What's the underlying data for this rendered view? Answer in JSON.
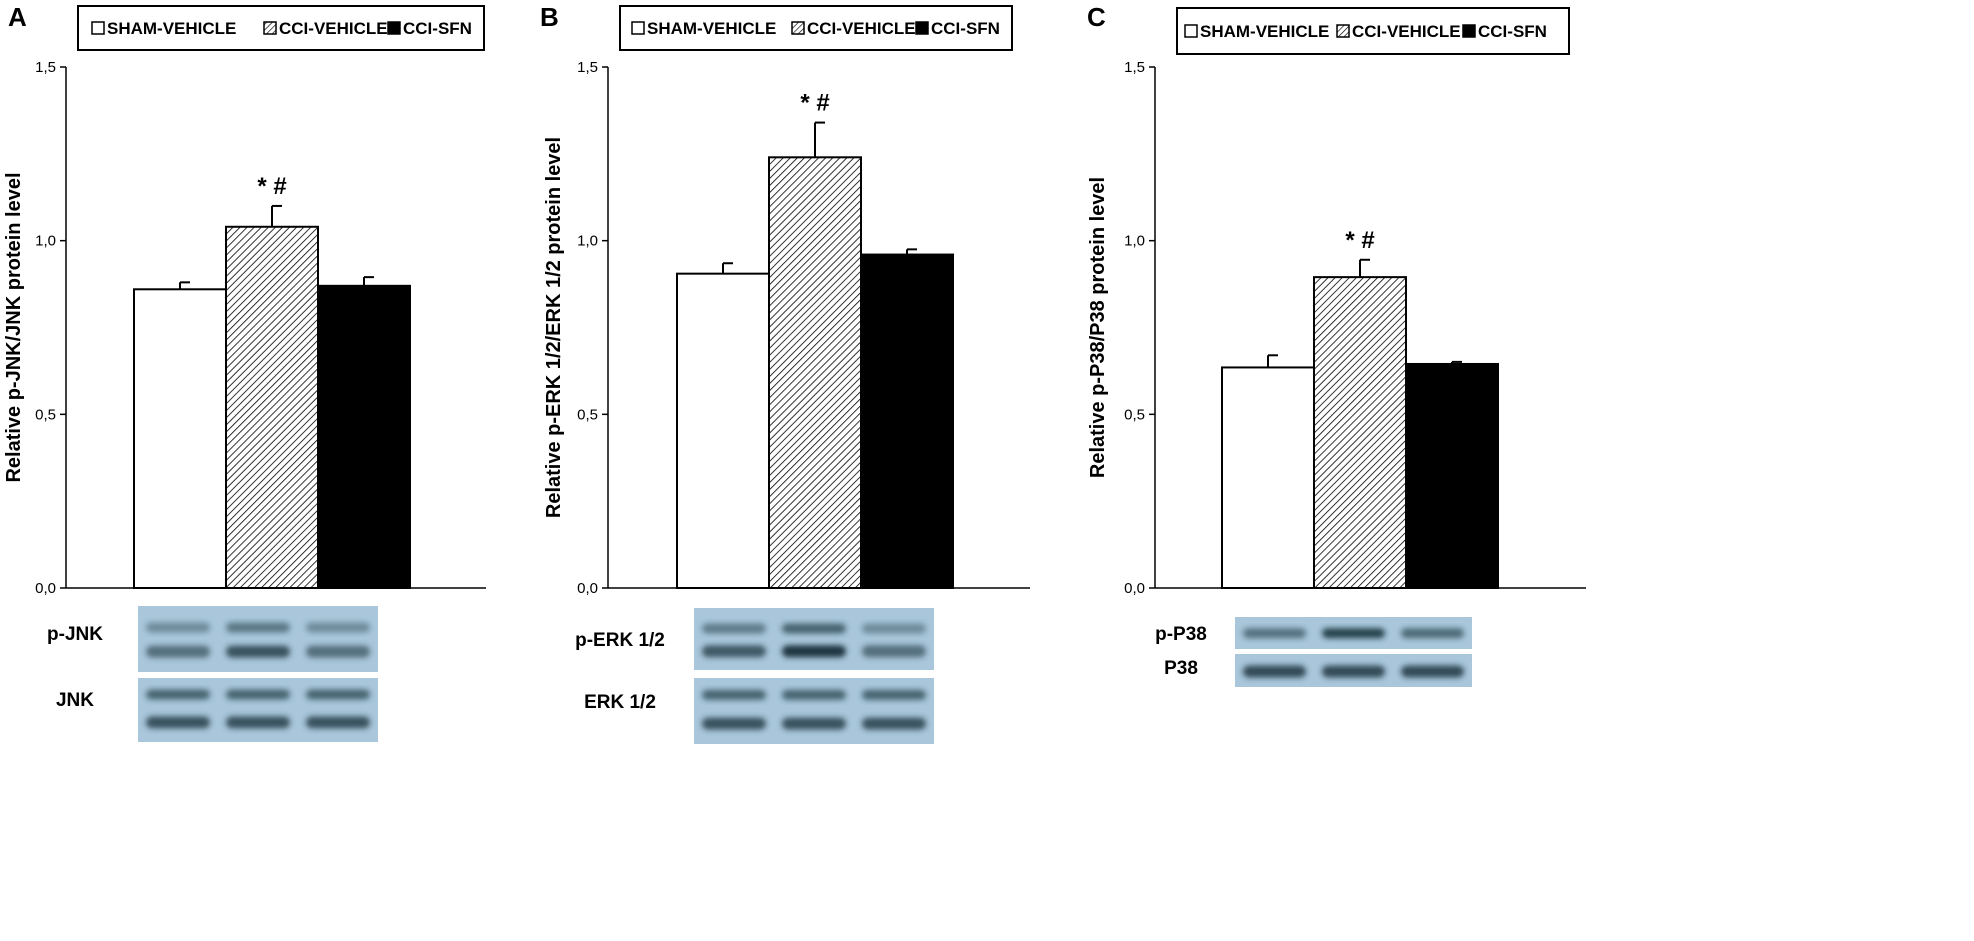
{
  "chart_data": [
    {
      "type": "bar",
      "panel": "A",
      "legend": [
        "SHAM-VEHICLE",
        "CCI-VEHICLE",
        "CCI-SFN"
      ],
      "categories": [
        "SHAM-VEHICLE",
        "CCI-VEHICLE",
        "CCI-SFN"
      ],
      "values": [
        0.86,
        1.04,
        0.87
      ],
      "errors": [
        0.02,
        0.06,
        0.025
      ],
      "significance": [
        "",
        "* #",
        ""
      ],
      "ylabel": "Relative p-JNK/JNK protein level",
      "ylim": [
        0,
        1.5
      ],
      "yticks": [
        "0,0",
        "0,5",
        "1,0",
        "1,5"
      ],
      "blot_labels": [
        "p-JNK",
        "JNK"
      ]
    },
    {
      "type": "bar",
      "panel": "B",
      "legend": [
        "SHAM-VEHICLE",
        "CCI-VEHICLE",
        "CCI-SFN"
      ],
      "categories": [
        "SHAM-VEHICLE",
        "CCI-VEHICLE",
        "CCI-SFN"
      ],
      "values": [
        0.905,
        1.24,
        0.96
      ],
      "errors": [
        0.03,
        0.1,
        0.015
      ],
      "significance": [
        "",
        "* #",
        ""
      ],
      "ylabel": "Relative p-ERK 1/2/ERK 1/2 protein level",
      "ylim": [
        0,
        1.5
      ],
      "yticks": [
        "0,0",
        "0,5",
        "1,0",
        "1,5"
      ],
      "blot_labels": [
        "p-ERK 1/2",
        "ERK 1/2"
      ]
    },
    {
      "type": "bar",
      "panel": "C",
      "legend": [
        "SHAM-VEHICLE",
        "CCI-VEHICLE",
        "CCI-SFN"
      ],
      "categories": [
        "SHAM-VEHICLE",
        "CCI-VEHICLE",
        "CCI-SFN"
      ],
      "values": [
        0.635,
        0.895,
        0.645
      ],
      "errors": [
        0.035,
        0.05,
        0.006
      ],
      "significance": [
        "",
        "* #",
        ""
      ],
      "ylabel": "Relative p-P38/P38 protein level",
      "ylim": [
        0,
        1.5
      ],
      "yticks": [
        "0,0",
        "0,5",
        "1,0",
        "1,5"
      ],
      "blot_labels": [
        "p-P38",
        "P38"
      ]
    }
  ],
  "colors": {
    "sham": "#ffffff",
    "cci_vehicle_hatch": "#000000",
    "cci_sfn": "#000000",
    "axis": "#000000",
    "blot_background": "#a8c4d8",
    "blot_band": "#1e3a44"
  }
}
